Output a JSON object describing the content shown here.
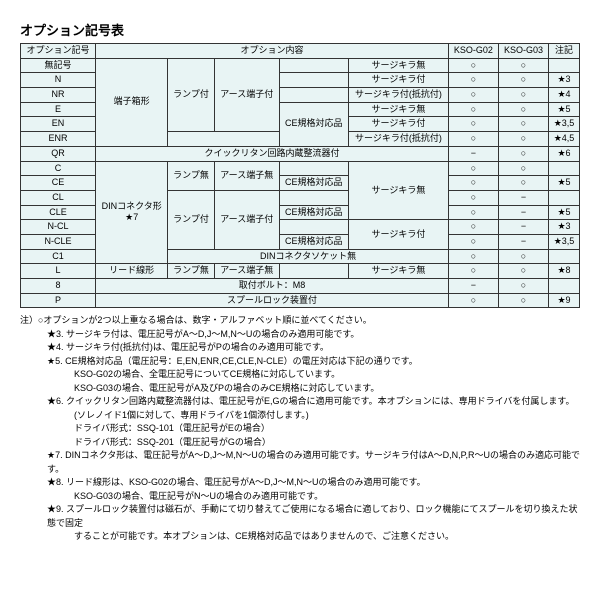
{
  "title": "オプション記号表",
  "headers": {
    "optionCode": "オプション記号",
    "optionContent": "オプション内容",
    "g02": "KSO-G02",
    "g03": "KSO-G03",
    "note": "注記"
  },
  "body": {
    "noSymbol": "無記号",
    "terminalBox": "端子箱形",
    "dinConnector": "DINコネクタ形",
    "leadWire": "リード線形",
    "lampOn": "ランプ付",
    "lampOff": "ランプ無",
    "earthOn": "アース端子付",
    "earthOff": "アース端子無",
    "ceCompliant": "CE規格対応品",
    "surgeNone": "サージキラ無",
    "surgeOn": "サージキラ付",
    "surgeResist": "サージキラ付(抵抗付)",
    "quickReturn": "クイックリタン回路内蔵整流器付",
    "dinSocketNone": "DINコネクタソケット無",
    "boltM8": "取付ボルト：M8",
    "spoolLock": "スプールロック装置付",
    "circle": "○",
    "dash": "−",
    "star7": "★7"
  },
  "rows": {
    "N": "N",
    "NR": "NR",
    "E": "E",
    "EN": "EN",
    "ENR": "ENR",
    "QR": "QR",
    "C": "C",
    "CE": "CE",
    "CL": "CL",
    "CLE": "CLE",
    "NCL": "N-CL",
    "NCLE": "N-CLE",
    "C1": "C1",
    "L": "L",
    "8": "8",
    "P": "P"
  },
  "notecol": {
    "s3": "★3",
    "s4": "★4",
    "s5": "★5",
    "s35": "★3,5",
    "s45": "★4,5",
    "s6": "★6",
    "s8": "★8",
    "s9": "★9"
  },
  "notes": {
    "intro": "注）○オプションが2つ以上重なる場合は、数字・アルファベット順に並べてください。",
    "n3": "★3. サージキラ付は、電圧記号がA～D,J～M,N～Uの場合のみ適用可能です。",
    "n4": "★4. サージキラ付(抵抗付)は、電圧記号がPの場合のみ適用可能です。",
    "n5a": "★5. CE規格対応品（電圧記号：E,EN,ENR,CE,CLE,N-CLE）の電圧対応は下記の通りです。",
    "n5b": "KSO-G02の場合、全電圧記号についてCE規格に対応しています。",
    "n5c": "KSO-G03の場合、電圧記号がA及びPの場合のみCE規格に対応しています。",
    "n6a": "★6. クイックリタン回路内蔵整流器付は、電圧記号がE,Gの場合に適用可能です。本オプションには、専用ドライバを付属します。",
    "n6b": "(ソレノイド1個に対して、専用ドライバを1個添付します。)",
    "n6c": "ドライバ形式：SSQ-101（電圧記号がEの場合）",
    "n6d": "ドライバ形式：SSQ-201（電圧記号がGの場合）",
    "n7": "★7. DINコネクタ形は、電圧記号がA～D,J～M,N～Uの場合のみ適用可能です。サージキラ付はA～D,N,P,R～Uの場合のみ適応可能です。",
    "n8a": "★8. リード線形は、KSO-G02の場合、電圧記号がA～D,J～M,N～Uの場合のみ適用可能です。",
    "n8b": "KSO-G03の場合、電圧記号がN～Uの場合のみ適用可能です。",
    "n9a": "★9. スプールロック装置付は磁石が、手動にて切り替えてご使用になる場合に適しており、ロック機能にてスプールを切り換えた状態で固定",
    "n9b": "することが可能です。本オプションは、CE規格対応品ではありませんので、ご注意ください。"
  }
}
